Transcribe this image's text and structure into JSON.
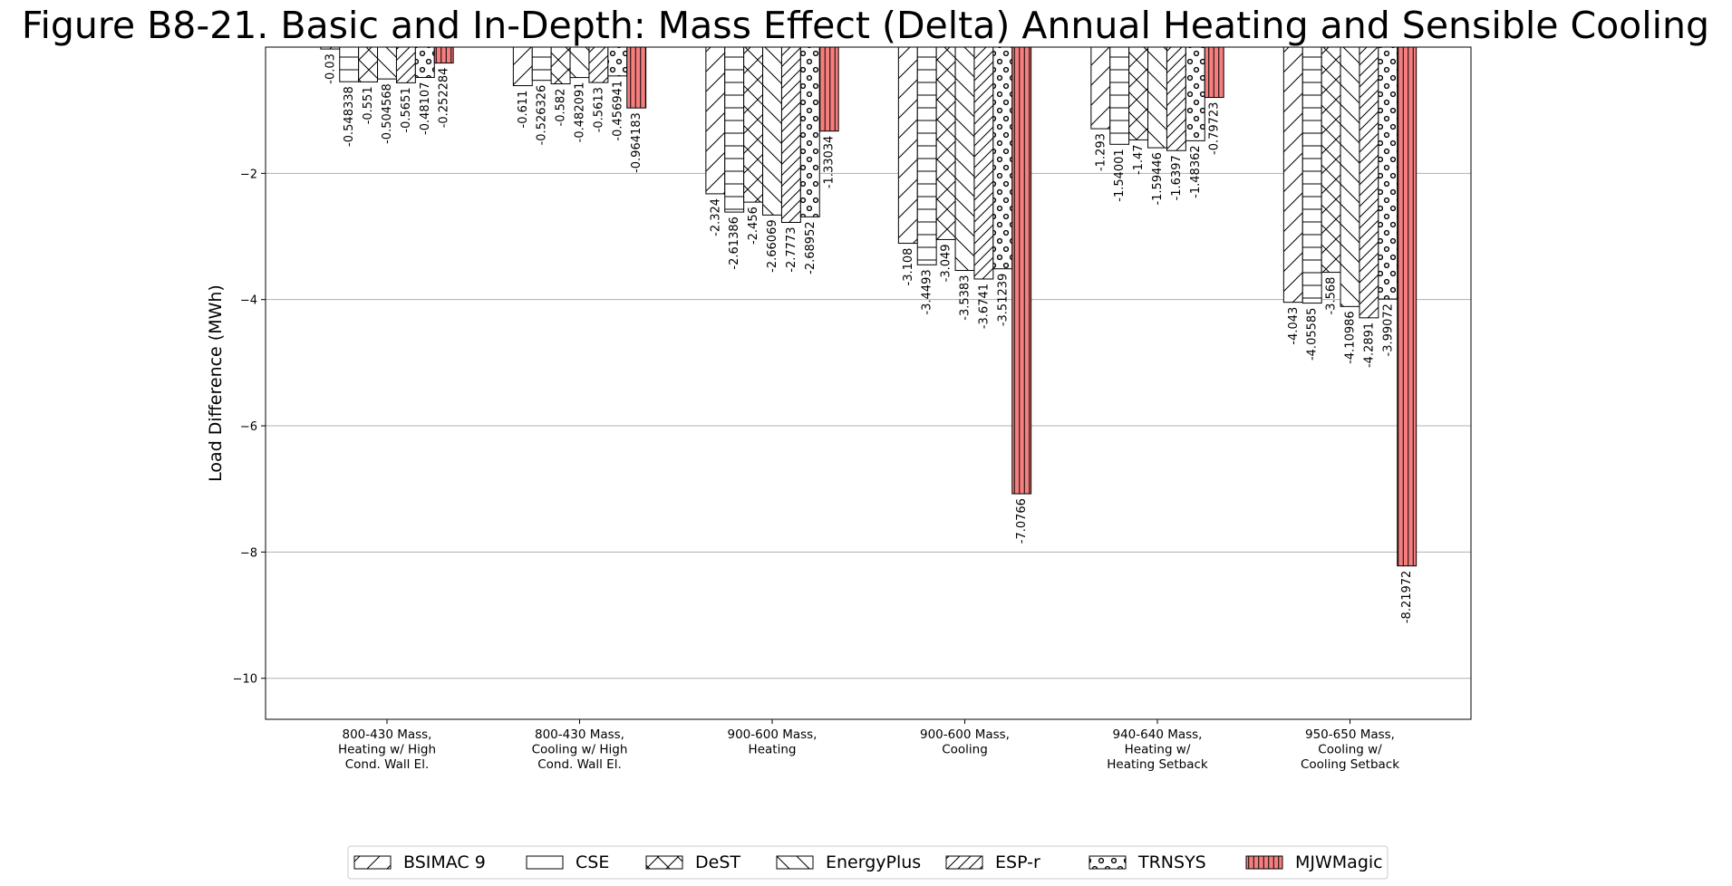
{
  "chart_data": {
    "type": "bar",
    "title": "Figure B8-21. Basic and In-Depth: Mass Effect (Delta) Annual Heating and Sensible Cooling",
    "ylabel": "Load Difference (MWh)",
    "xlabel": "",
    "ylim": [
      -10.65,
      0
    ],
    "yticks": [
      -2,
      -4,
      -6,
      -8,
      -10
    ],
    "ytick_labels": [
      "−2",
      "−4",
      "−6",
      "−8",
      "−10"
    ],
    "grid": "horizontal",
    "legend_position": "bottom-center",
    "categories": [
      [
        "800-430 Mass,",
        "Heating w/ High",
        "Cond. Wall El."
      ],
      [
        "800-430 Mass,",
        "Cooling w/ High",
        "Cond. Wall El."
      ],
      [
        "900-600 Mass,",
        "Heating"
      ],
      [
        "900-600 Mass,",
        "Cooling"
      ],
      [
        "940-640 Mass,",
        "Heating w/",
        "Heating Setback"
      ],
      [
        "950-650 Mass,",
        "Cooling w/",
        "Cooling Setback"
      ]
    ],
    "series": [
      {
        "name": "BSIMAC 9",
        "pattern": "diag-up",
        "color": "#ffffff",
        "values": [
          -0.03,
          -0.611,
          -2.324,
          -3.108,
          -1.293,
          -4.043
        ],
        "labels": [
          "-0.03",
          "-0.611",
          "-2.324",
          "-3.108",
          "-1.293",
          "-4.043"
        ]
      },
      {
        "name": "CSE",
        "pattern": "horizontal",
        "color": "#ffffff",
        "values": [
          -0.548338,
          -0.526326,
          -2.61386,
          -3.4493,
          -1.54001,
          -4.05585
        ],
        "labels": [
          "-0.548338",
          "-0.526326",
          "-2.61386",
          "-3.4493",
          "-1.54001",
          "-4.05585"
        ]
      },
      {
        "name": "DeST",
        "pattern": "cross",
        "color": "#ffffff",
        "values": [
          -0.551,
          -0.582,
          -2.456,
          -3.049,
          -1.47,
          -3.568
        ],
        "labels": [
          "-0.551",
          "-0.582",
          "-2.456",
          "-3.049",
          "-1.47",
          "-3.568"
        ]
      },
      {
        "name": "EnergyPlus",
        "pattern": "diag-down",
        "color": "#ffffff",
        "values": [
          -0.504568,
          -0.482091,
          -2.66069,
          -3.5383,
          -1.59446,
          -4.10986
        ],
        "labels": [
          "-0.504568",
          "-0.482091",
          "-2.66069",
          "-3.5383",
          "-1.59446",
          "-4.10986"
        ]
      },
      {
        "name": "ESP-r",
        "pattern": "diag-up-dense",
        "color": "#ffffff",
        "values": [
          -0.5651,
          -0.5613,
          -2.7773,
          -3.6741,
          -1.6397,
          -4.2891
        ],
        "labels": [
          "-0.5651",
          "-0.5613",
          "-2.7773",
          "-3.6741",
          "-1.6397",
          "-4.2891"
        ]
      },
      {
        "name": "TRNSYS",
        "pattern": "circles",
        "color": "#ffffff",
        "values": [
          -0.48107,
          -0.456941,
          -2.68952,
          -3.51239,
          -1.48362,
          -3.99072
        ],
        "labels": [
          "-0.48107",
          "-0.456941",
          "-2.68952",
          "-3.51239",
          "-1.48362",
          "-3.99072"
        ]
      },
      {
        "name": "MJWMagic",
        "pattern": "vertical",
        "color": "#f57f7f",
        "values": [
          -0.252284,
          -0.964183,
          -1.33034,
          -7.0766,
          -0.79723,
          -8.21972
        ],
        "labels": [
          "-0.252284",
          "-0.964183",
          "-1.33034",
          "-7.0766",
          "-0.79723",
          "-8.21972"
        ]
      }
    ]
  }
}
